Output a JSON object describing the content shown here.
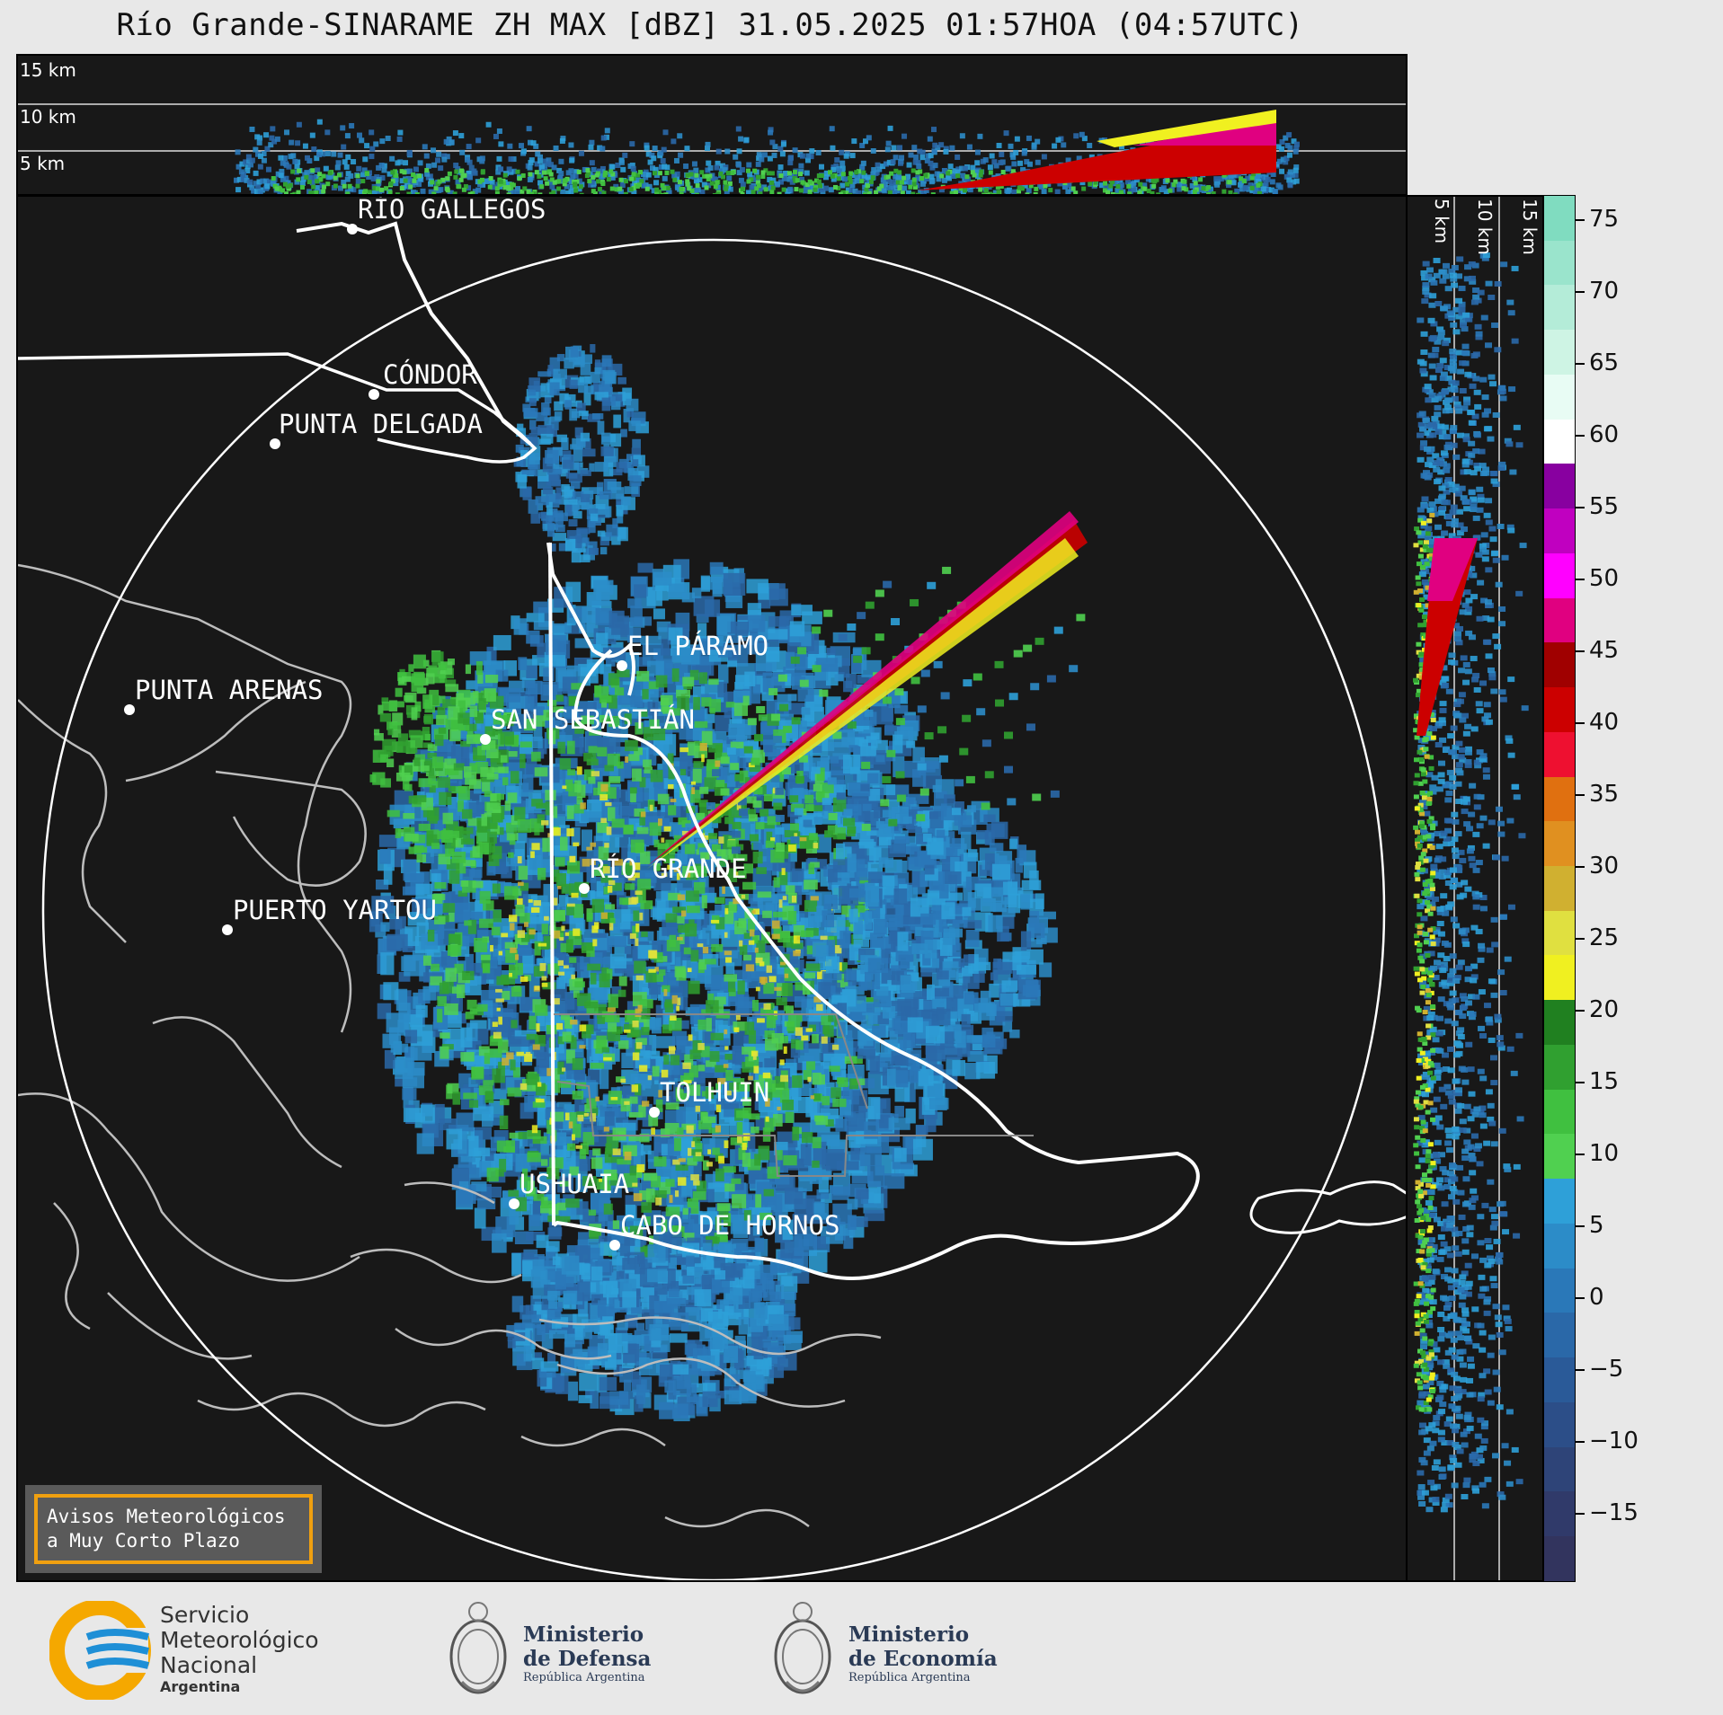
{
  "title": "Río Grande-SINARAME ZH MAX [dBZ] 31.05.2025 01:57HOA (04:57UTC)",
  "top_panel": {
    "height_labels": [
      "15 km",
      "10 km",
      "5 km"
    ]
  },
  "side_panel": {
    "height_labels": [
      "5 km",
      "10 km",
      "15 km"
    ]
  },
  "map": {
    "cities": [
      {
        "name": "RÍO GALLEGOS"
      },
      {
        "name": "CÓNDOR"
      },
      {
        "name": "PUNTA DELGADA"
      },
      {
        "name": "EL PÁRAMO"
      },
      {
        "name": "PUNTA ARENAS"
      },
      {
        "name": "SAN SEBASTIÁN"
      },
      {
        "name": "RÍO GRANDE"
      },
      {
        "name": "PUERTO YARTOU"
      },
      {
        "name": "TOLHUIN"
      },
      {
        "name": "USHUAIA"
      },
      {
        "name": "CABO DE HORNOS"
      }
    ]
  },
  "colorbar": {
    "unit": "dBZ",
    "ticks": [
      "75",
      "70",
      "65",
      "60",
      "55",
      "50",
      "45",
      "40",
      "35",
      "30",
      "25",
      "20",
      "15",
      "10",
      "5",
      "0",
      "−5",
      "−10",
      "−15"
    ],
    "colors": [
      "#80dcc0",
      "#9ae4cc",
      "#b4ecd8",
      "#cef4e4",
      "#e8fcf4",
      "#ffffff",
      "#8800a0",
      "#c000c0",
      "#ff00ff",
      "#e00080",
      "#a00000",
      "#cc0000",
      "#ee1030",
      "#e07010",
      "#e09020",
      "#d0b030",
      "#e0e040",
      "#f0f020",
      "#208020",
      "#30a030",
      "#40c040",
      "#50d050",
      "#2ea0d8",
      "#2c8cc8",
      "#2a78b8",
      "#2a68a8",
      "#2a5a98",
      "#2c4e88",
      "#2e4478",
      "#303a6a",
      "#32345e"
    ]
  },
  "avisos": {
    "line1": "Avisos Meteorológicos",
    "line2": "a Muy Corto Plazo"
  },
  "footer": {
    "smn_line1": "Servicio",
    "smn_line2": "Meteorológico",
    "smn_line3": "Nacional",
    "smn_line4": "Argentina",
    "defensa_line1": "Ministerio",
    "defensa_line2": "de Defensa",
    "defensa_line3": "República Argentina",
    "economia_line1": "Ministerio",
    "economia_line2": "de Economía",
    "economia_line3": "República Argentina"
  }
}
